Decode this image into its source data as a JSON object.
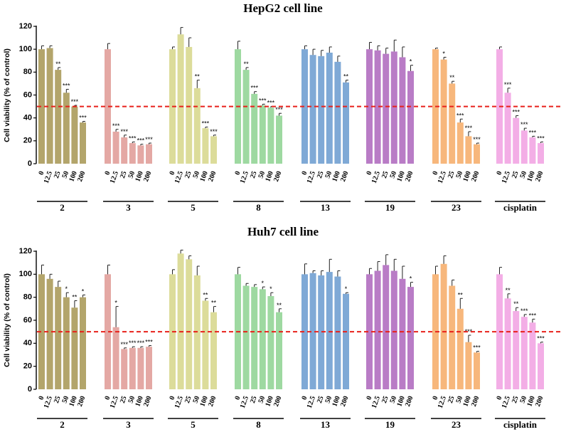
{
  "chart_data": [
    {
      "type": "bar",
      "title": "HepG2 cell line",
      "ylabel": "Cell viability (% of control)",
      "ylim": [
        0,
        120
      ],
      "yticks": [
        "0",
        "20",
        "40",
        "60",
        "80",
        "100",
        "120"
      ],
      "concentrations": [
        "0",
        "12.5",
        "25",
        "50",
        "100",
        "200"
      ],
      "reference_line": 50,
      "groups": [
        {
          "label": "2",
          "color": "#b3a56b",
          "values": [
            100,
            101,
            82,
            62,
            50,
            36
          ],
          "errors": [
            3,
            2,
            2,
            3,
            1,
            1
          ],
          "sig": [
            "",
            "",
            "**",
            "***",
            "***",
            "***"
          ]
        },
        {
          "label": "3",
          "color": "#e4a8a4",
          "values": [
            100,
            28,
            23,
            18,
            16,
            17
          ],
          "errors": [
            5,
            2,
            2,
            1,
            1,
            1
          ],
          "sig": [
            "",
            "***",
            "***",
            "***",
            "***",
            "***"
          ]
        },
        {
          "label": "5",
          "color": "#dcdc9a",
          "values": [
            100,
            113,
            102,
            66,
            31,
            24
          ],
          "errors": [
            2,
            6,
            8,
            7,
            1,
            1
          ],
          "sig": [
            "",
            "",
            "",
            "**",
            "***",
            "***"
          ]
        },
        {
          "label": "8",
          "color": "#9ed9a1",
          "values": [
            100,
            82,
            61,
            51,
            49,
            42
          ],
          "errors": [
            7,
            2,
            2,
            1,
            1,
            2
          ],
          "sig": [
            "",
            "**",
            "***",
            "***",
            "***",
            "***"
          ]
        },
        {
          "label": "13",
          "color": "#7fa9d6",
          "values": [
            100,
            95,
            94,
            97,
            89,
            71
          ],
          "errors": [
            3,
            5,
            5,
            5,
            5,
            2
          ],
          "sig": [
            "",
            "",
            "",
            "",
            "",
            "**"
          ]
        },
        {
          "label": "19",
          "color": "#b97cc6",
          "values": [
            100,
            99,
            96,
            98,
            93,
            81
          ],
          "errors": [
            6,
            4,
            5,
            10,
            9,
            5
          ],
          "sig": [
            "",
            "",
            "",
            "",
            "",
            "*"
          ]
        },
        {
          "label": "23",
          "color": "#f7b77c",
          "values": [
            100,
            91,
            70,
            36,
            24,
            17
          ],
          "errors": [
            1,
            2,
            2,
            3,
            4,
            1
          ],
          "sig": [
            "",
            "*",
            "**",
            "***",
            "***",
            "***"
          ]
        },
        {
          "label": "cisplatin",
          "color": "#f3aee6",
          "values": [
            100,
            62,
            40,
            29,
            23,
            18
          ],
          "errors": [
            2,
            4,
            2,
            2,
            1,
            1
          ],
          "sig": [
            "",
            "***",
            "***",
            "***",
            "***",
            "***"
          ]
        }
      ]
    },
    {
      "type": "bar",
      "title": "Huh7 cell line",
      "ylabel": "Cell viability (% of control)",
      "ylim": [
        0,
        120
      ],
      "yticks": [
        "0",
        "20",
        "40",
        "60",
        "80",
        "100",
        "120"
      ],
      "concentrations": [
        "0",
        "12.5",
        "25",
        "50",
        "100",
        "200"
      ],
      "reference_line": 50,
      "groups": [
        {
          "label": "2",
          "color": "#b3a56b",
          "values": [
            100,
            96,
            89,
            80,
            71,
            80
          ],
          "errors": [
            8,
            4,
            5,
            4,
            6,
            2
          ],
          "sig": [
            "",
            "",
            "",
            "*",
            "**",
            "*"
          ]
        },
        {
          "label": "3",
          "color": "#e4a8a4",
          "values": [
            100,
            54,
            35,
            36,
            36,
            37
          ],
          "errors": [
            8,
            18,
            1,
            1,
            1,
            1
          ],
          "sig": [
            "",
            "*",
            "***",
            "***",
            "***",
            "***"
          ]
        },
        {
          "label": "5",
          "color": "#dcdc9a",
          "values": [
            100,
            118,
            113,
            99,
            77,
            67
          ],
          "errors": [
            4,
            3,
            3,
            8,
            2,
            5
          ],
          "sig": [
            "",
            "",
            "",
            "",
            "**",
            "**"
          ]
        },
        {
          "label": "8",
          "color": "#9ed9a1",
          "values": [
            100,
            90,
            89,
            87,
            81,
            67
          ],
          "errors": [
            6,
            2,
            2,
            2,
            3,
            3
          ],
          "sig": [
            "",
            "",
            "",
            "*",
            "*",
            "**"
          ]
        },
        {
          "label": "13",
          "color": "#7fa9d6",
          "values": [
            100,
            101,
            99,
            102,
            98,
            83
          ],
          "errors": [
            9,
            2,
            4,
            11,
            5,
            1
          ],
          "sig": [
            "",
            "",
            "",
            "",
            "",
            "*"
          ]
        },
        {
          "label": "19",
          "color": "#b97cc6",
          "values": [
            100,
            103,
            108,
            103,
            96,
            89
          ],
          "errors": [
            5,
            8,
            9,
            10,
            11,
            4
          ],
          "sig": [
            "",
            "",
            "",
            "",
            "",
            "*"
          ]
        },
        {
          "label": "23",
          "color": "#f7b77c",
          "values": [
            100,
            109,
            90,
            70,
            41,
            32
          ],
          "errors": [
            7,
            7,
            5,
            9,
            6,
            1
          ],
          "sig": [
            "",
            "",
            "",
            "**",
            "***",
            "***"
          ]
        },
        {
          "label": "cisplatin",
          "color": "#f3aee6",
          "values": [
            100,
            79,
            68,
            63,
            58,
            40
          ],
          "errors": [
            6,
            4,
            3,
            2,
            3,
            1
          ],
          "sig": [
            "",
            "**",
            "**",
            "***",
            "***",
            "***"
          ]
        }
      ]
    }
  ]
}
